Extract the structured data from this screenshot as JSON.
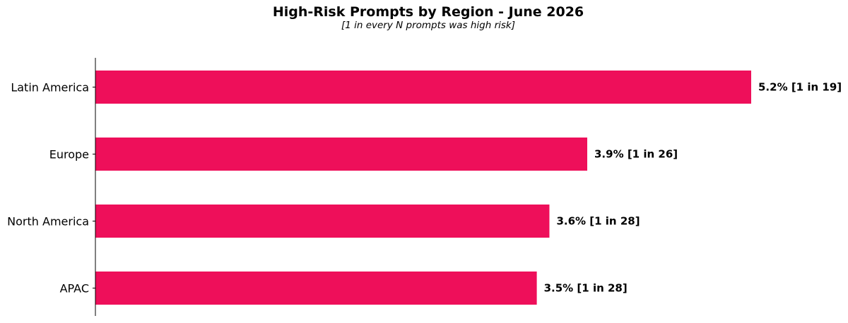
{
  "chart_data": {
    "type": "bar",
    "orientation": "horizontal",
    "title": "High-Risk Prompts by Region - June 2026",
    "subtitle": "[1 in every N prompts was high risk]",
    "xlabel": "",
    "ylabel": "",
    "grid": false,
    "legend": "none",
    "bar_color": "#EE0F5A",
    "xlim": [
      0,
      5.6
    ],
    "categories": [
      "Latin America",
      "Europe",
      "North America",
      "APAC"
    ],
    "values": [
      5.2,
      3.9,
      3.6,
      3.5
    ],
    "value_labels": [
      "5.2% [1 in 19]",
      "3.9% [1 in 26]",
      "3.6% [1 in 28]",
      "3.5% [1 in 28]"
    ]
  }
}
